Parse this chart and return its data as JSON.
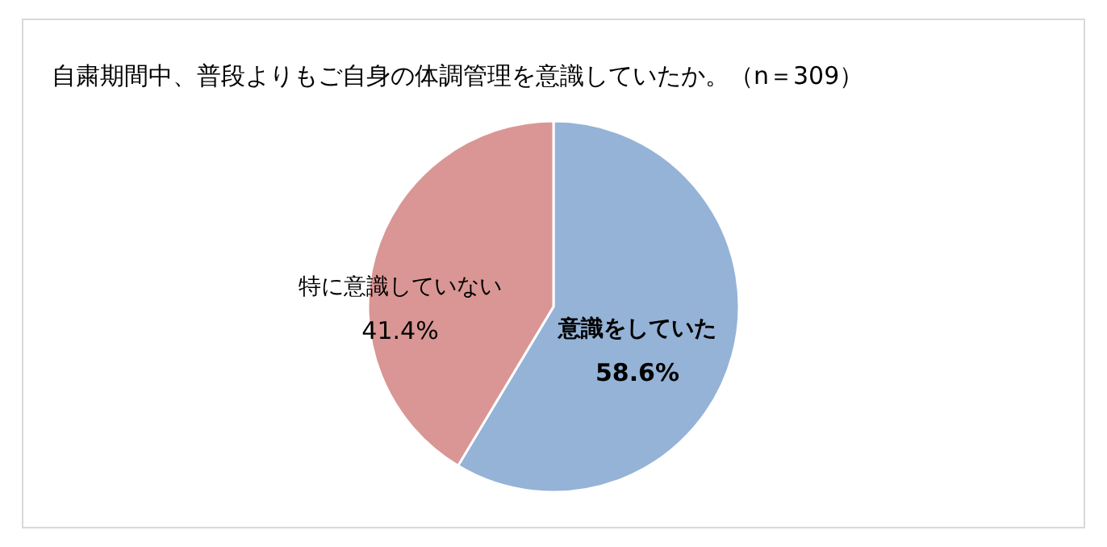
{
  "chart_data": {
    "type": "pie",
    "title": "自粛期間中、普段よりもご自身の体調管理を意識していたか。（n＝309）",
    "categories": [
      "意識をしていた",
      "特に意識していない"
    ],
    "values": [
      58.6,
      41.4
    ],
    "colors": [
      "#95b3d7",
      "#d99694"
    ],
    "value_labels": [
      "58.6%",
      "41.4%"
    ]
  }
}
